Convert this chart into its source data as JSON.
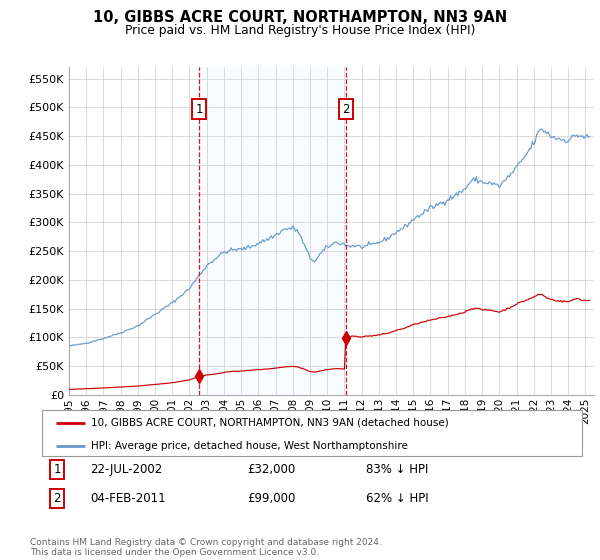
{
  "title": "10, GIBBS ACRE COURT, NORTHAMPTON, NN3 9AN",
  "subtitle": "Price paid vs. HM Land Registry's House Price Index (HPI)",
  "background_color": "#ffffff",
  "plot_bg_color": "#ffffff",
  "grid_color": "#cccccc",
  "hpi_line_color": "#6699cc",
  "price_line_color": "#cc0000",
  "shade_color": "#ddeeff",
  "ylim": [
    0,
    570000
  ],
  "yticks": [
    0,
    50000,
    100000,
    150000,
    200000,
    250000,
    300000,
    350000,
    400000,
    450000,
    500000,
    550000
  ],
  "ytick_labels": [
    "£0",
    "£50K",
    "£100K",
    "£150K",
    "£200K",
    "£250K",
    "£300K",
    "£350K",
    "£400K",
    "£450K",
    "£500K",
    "£550K"
  ],
  "xlim_start": 1995.0,
  "xlim_end": 2025.5,
  "sale1_date": 2002.55,
  "sale1_price": 32000,
  "sale2_date": 2011.08,
  "sale2_price": 99000,
  "legend_label1": "10, GIBBS ACRE COURT, NORTHAMPTON, NN3 9AN (detached house)",
  "legend_label2": "HPI: Average price, detached house, West Northamptonshire",
  "note1_date": "22-JUL-2002",
  "note1_price": "£32,000",
  "note1_hpi": "83% ↓ HPI",
  "note2_date": "04-FEB-2011",
  "note2_price": "£99,000",
  "note2_hpi": "62% ↓ HPI",
  "footer": "Contains HM Land Registry data © Crown copyright and database right 2024.\nThis data is licensed under the Open Government Licence v3.0."
}
